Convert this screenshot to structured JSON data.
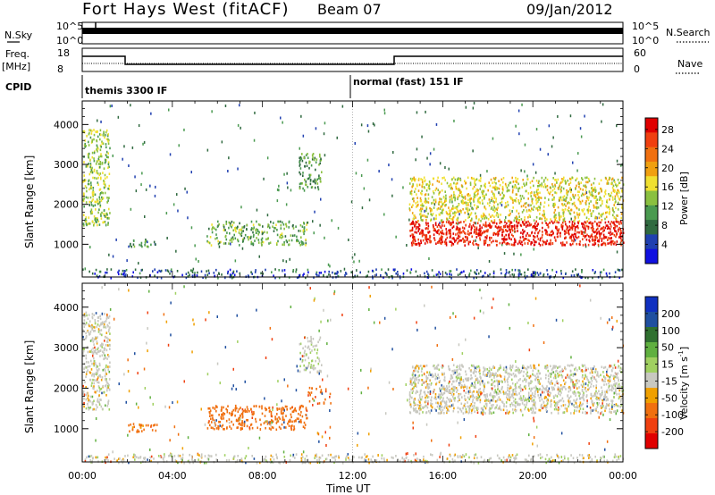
{
  "header": {
    "station": "Fort Hays West (fitACF)",
    "beam": "Beam 07",
    "date": "09/Jan/2012"
  },
  "strip_labels": {
    "nsky": "N.Sky",
    "nsky_hi": "10^5",
    "nsky_lo": "10^0",
    "nsearch": "N.Search",
    "nsearch_hi": "10^5",
    "nsearch_lo": "10^0",
    "freq": "Freq.",
    "freq_unit": "[MHz]",
    "freq_hi": "18",
    "freq_lo": "8",
    "nave": "Nave",
    "nave_hi": "60",
    "nave_lo": "0",
    "cpid": "CPID",
    "cpid_mode1": "themis 3300 IF",
    "cpid_mode2": "normal (fast) 151 IF"
  },
  "colorbars": {
    "power": {
      "label": "Power [dB]",
      "ticks": [
        "28",
        "24",
        "20",
        "16",
        "12",
        "8",
        "4"
      ],
      "colors": [
        "#1010e0",
        "#2040b0",
        "#306a40",
        "#4a9a50",
        "#8ac040",
        "#f0e030",
        "#f0a010",
        "#f07010",
        "#f04010",
        "#e00000"
      ]
    },
    "velocity": {
      "label_main": "Velocity [m s",
      "label_exp": "-1",
      "label_end": "]",
      "ticks": [
        "200",
        "100",
        "50",
        "15",
        "-15",
        "-50",
        "-100",
        "-200"
      ],
      "colors": [
        "#1030c0",
        "#2050a0",
        "#307030",
        "#60b040",
        "#a0d060",
        "#c8c8c0",
        "#f0a000",
        "#f07010",
        "#f04010",
        "#e00000"
      ]
    }
  },
  "chart_data": [
    {
      "type": "heatmap",
      "panel": "power",
      "ylabel": "Slant Range [km]",
      "xlabel": "Time UT",
      "x_ticks": [
        "00:00",
        "04:00",
        "08:00",
        "12:00",
        "16:00",
        "20:00",
        "00:00"
      ],
      "xlim_hours": [
        0,
        24
      ],
      "y_ticks": [
        "1000",
        "2000",
        "3000",
        "4000"
      ],
      "ylim_km": [
        180,
        4590
      ],
      "color_scale": "Power [dB]",
      "regions": [
        {
          "t0": 0.0,
          "t1": 1.2,
          "r0": 1500,
          "r1": 3900,
          "value": 14,
          "density": 0.55
        },
        {
          "t0": 2.0,
          "t1": 3.3,
          "r0": 950,
          "r1": 1150,
          "value": 9,
          "density": 0.5
        },
        {
          "t0": 5.5,
          "t1": 10.0,
          "r0": 1000,
          "r1": 1600,
          "value": 12,
          "density": 0.45
        },
        {
          "t0": 9.6,
          "t1": 10.6,
          "r0": 2400,
          "r1": 3300,
          "value": 10,
          "density": 0.5
        },
        {
          "t0": 14.5,
          "t1": 24.0,
          "r0": 1000,
          "r1": 1600,
          "value": 26,
          "density": 0.8
        },
        {
          "t0": 14.5,
          "t1": 24.0,
          "r0": 1600,
          "r1": 2700,
          "value": 16,
          "density": 0.55
        },
        {
          "t0": 0.0,
          "t1": 24.0,
          "r0": 180,
          "r1": 400,
          "value": 6,
          "density": 0.35
        }
      ]
    },
    {
      "type": "heatmap",
      "panel": "velocity",
      "ylabel": "Slant Range [km]",
      "xlabel": "Time UT",
      "x_ticks": [
        "00:00",
        "04:00",
        "08:00",
        "12:00",
        "16:00",
        "20:00",
        "00:00"
      ],
      "xlim_hours": [
        0,
        24
      ],
      "y_ticks": [
        "1000",
        "2000",
        "3000",
        "4000"
      ],
      "ylim_km": [
        180,
        4590
      ],
      "color_scale": "Velocity [m s-1]",
      "regions": [
        {
          "t0": 0.0,
          "t1": 1.2,
          "r0": 1500,
          "r1": 3900,
          "value": 0,
          "density": 0.6
        },
        {
          "t0": 2.0,
          "t1": 3.3,
          "r0": 950,
          "r1": 1150,
          "value": -60,
          "density": 0.6
        },
        {
          "t0": 5.5,
          "t1": 10.0,
          "r0": 1000,
          "r1": 1600,
          "value": -70,
          "density": 0.55
        },
        {
          "t0": 9.6,
          "t1": 10.6,
          "r0": 2400,
          "r1": 3300,
          "value": 5,
          "density": 0.45
        },
        {
          "t0": 10.0,
          "t1": 11.0,
          "r0": 1600,
          "r1": 2100,
          "value": -90,
          "density": 0.3
        },
        {
          "t0": 14.5,
          "t1": 24.0,
          "r0": 1400,
          "r1": 2600,
          "value": 0,
          "density": 0.7
        },
        {
          "t0": 0.0,
          "t1": 24.0,
          "r0": 180,
          "r1": 400,
          "value": 0,
          "density": 0.4
        }
      ]
    }
  ]
}
